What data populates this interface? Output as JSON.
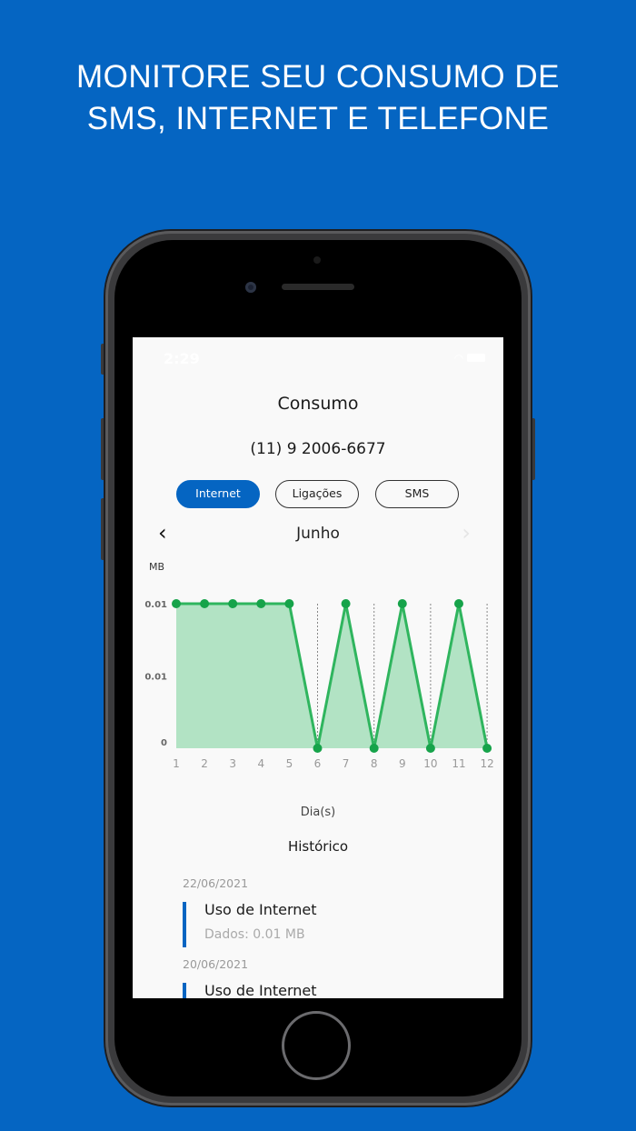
{
  "headline": {
    "line1": "MONITORE SEU CONSUMO DE",
    "line2": "SMS, INTERNET E TELEFONE"
  },
  "status_bar": {
    "time": "2:29",
    "icons": [
      "wifi-icon",
      "battery-icon"
    ]
  },
  "screen": {
    "title": "Consumo",
    "phone_number": "(11) 9 2006-6677",
    "tabs": [
      {
        "label": "Internet",
        "active": true
      },
      {
        "label": "Ligações",
        "active": false
      },
      {
        "label": "SMS",
        "active": false
      }
    ],
    "month": "Junho",
    "prev_icon": "chevron-left-icon",
    "next_icon": "chevron-right-icon",
    "x_axis_label": "Dia(s)",
    "history_title": "Histórico",
    "history": [
      {
        "date": "22/06/2021",
        "name": "Uso de Internet",
        "detail": "Dados: 0.01 MB"
      },
      {
        "date": "20/06/2021",
        "name": "Uso de Internet",
        "detail": ""
      }
    ]
  },
  "colors": {
    "background": "#0565c2",
    "accent": "#0565c2",
    "series_line": "#2fb55e",
    "series_fill": "#b2e3c4",
    "point": "#16a34a"
  },
  "chart_data": {
    "type": "area",
    "unit_label": "MB",
    "x": [
      1,
      2,
      3,
      4,
      5,
      6,
      7,
      8,
      9,
      10,
      11,
      12
    ],
    "x_tick_labels": [
      "1",
      "2",
      "3",
      "4",
      "5",
      "6",
      "7",
      "8",
      "9",
      "10",
      "11",
      "12"
    ],
    "values": [
      0.01,
      0.01,
      0.01,
      0.01,
      0.01,
      0,
      0.01,
      0,
      0.01,
      0,
      0.01,
      0
    ],
    "y_tick_labels": [
      "0.01",
      "0.01",
      "0"
    ],
    "ylim": [
      0,
      0.01
    ],
    "grid": "vertical dashed"
  }
}
